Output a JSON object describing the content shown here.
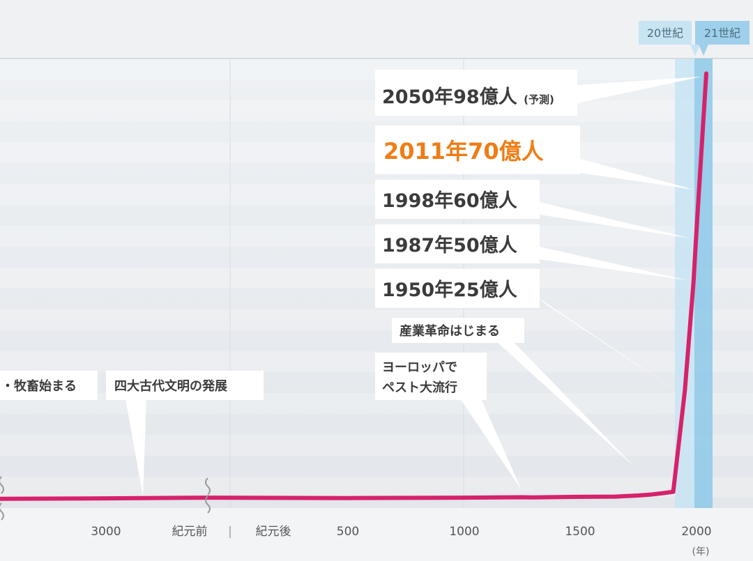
{
  "chart_data": {
    "type": "line",
    "title": "",
    "xlabel": "",
    "ylabel": "",
    "x_unit": "(年)",
    "x_ticks": [
      "3000",
      "紀元前",
      "|",
      "紀元後",
      "500",
      "1000",
      "1500",
      "2000"
    ],
    "centuries": [
      "20世紀",
      "21世紀"
    ],
    "series": [
      {
        "values": [
          {
            "x": -5000,
            "y": 0.05
          },
          {
            "x": -3000,
            "y": 0.14
          },
          {
            "x": 0,
            "y": 0.3
          },
          {
            "x": 500,
            "y": 0.21
          },
          {
            "x": 1000,
            "y": 0.31
          },
          {
            "x": 1250,
            "y": 0.4
          },
          {
            "x": 1300,
            "y": 0.35
          },
          {
            "x": 1350,
            "y": 0.4
          },
          {
            "x": 1500,
            "y": 0.5
          },
          {
            "x": 1650,
            "y": 0.55
          },
          {
            "x": 1750,
            "y": 0.8
          },
          {
            "x": 1800,
            "y": 1.0
          },
          {
            "x": 1850,
            "y": 1.3
          },
          {
            "x": 1900,
            "y": 1.65
          },
          {
            "x": 1950,
            "y": 25
          },
          {
            "x": 1987,
            "y": 50
          },
          {
            "x": 1998,
            "y": 60
          },
          {
            "x": 2011,
            "y": 70
          },
          {
            "x": 2050,
            "y": 98
          }
        ]
      }
    ],
    "annotations": [
      {
        "text": "2050年98億人",
        "suffix": "(予測)",
        "highlight": false
      },
      {
        "text": "2011年70億人",
        "highlight": true
      },
      {
        "text": "1998年60億人",
        "highlight": false
      },
      {
        "text": "1987年50億人",
        "highlight": false
      },
      {
        "text": "1950年25億人",
        "highlight": false
      },
      {
        "text": "産業革命はじまる",
        "highlight": false
      },
      {
        "text": "ヨーロッパで",
        "text2": "ペスト大流行",
        "highlight": false
      },
      {
        "text": "四大古代文明の発展",
        "highlight": false
      },
      {
        "text": "・牧畜始まる",
        "highlight": false
      }
    ],
    "colors": {
      "line": "#d6226a",
      "highlight": "#f07c14",
      "century20": "#c8e4f3",
      "century21": "#8cc8e8"
    }
  }
}
